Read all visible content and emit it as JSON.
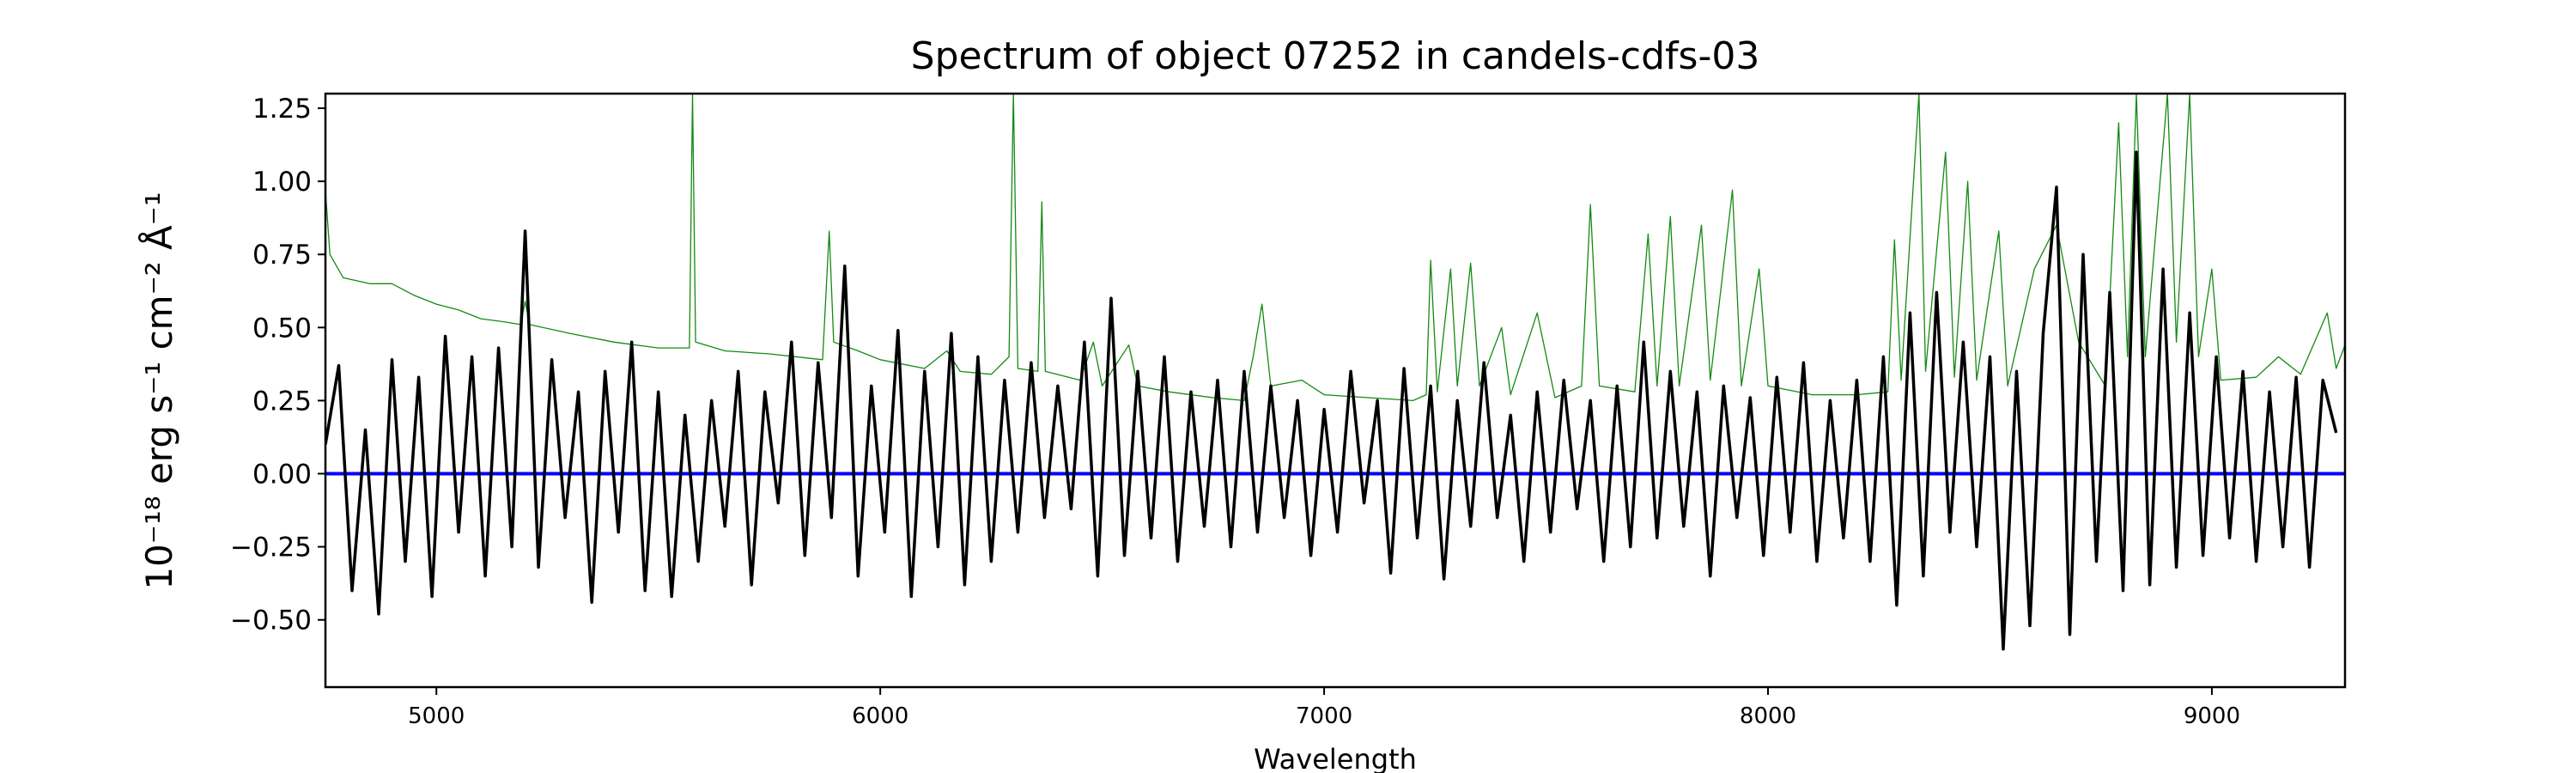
{
  "chart_data": {
    "type": "line",
    "title": "Spectrum of object 07252 in candels-cdfs-03",
    "xlabel": "Wavelength",
    "ylabel": "10⁻¹⁸ erg s⁻¹ cm⁻² Å⁻¹",
    "xlim": [
      4750,
      9300
    ],
    "ylim": [
      -0.73,
      1.3
    ],
    "xticks": [
      5000,
      6000,
      7000,
      8000,
      9000
    ],
    "xtick_labels": [
      "5000",
      "6000",
      "7000",
      "8000",
      "9000"
    ],
    "yticks": [
      -0.5,
      -0.25,
      0,
      0.25,
      0.5,
      0.75,
      1.0,
      1.25
    ],
    "ytick_labels": [
      "−0.50",
      "−0.25",
      "0.00",
      "0.25",
      "0.50",
      "0.75",
      "1.00",
      "1.25"
    ],
    "grid": false,
    "series": [
      {
        "name": "flux",
        "color": "#000000",
        "x_start": 4750,
        "x_step": 30,
        "values": [
          0.1,
          0.37,
          -0.4,
          0.15,
          -0.48,
          0.39,
          -0.3,
          0.33,
          -0.42,
          0.47,
          -0.2,
          0.4,
          -0.35,
          0.43,
          -0.25,
          0.83,
          -0.32,
          0.39,
          -0.15,
          0.28,
          -0.44,
          0.35,
          -0.2,
          0.45,
          -0.4,
          0.28,
          -0.42,
          0.2,
          -0.3,
          0.25,
          -0.18,
          0.35,
          -0.38,
          0.28,
          -0.1,
          0.45,
          -0.28,
          0.38,
          -0.15,
          0.71,
          -0.35,
          0.3,
          -0.2,
          0.49,
          -0.42,
          0.35,
          -0.25,
          0.48,
          -0.38,
          0.4,
          -0.3,
          0.32,
          -0.2,
          0.38,
          -0.15,
          0.3,
          -0.12,
          0.45,
          -0.35,
          0.6,
          -0.28,
          0.35,
          -0.22,
          0.4,
          -0.3,
          0.28,
          -0.18,
          0.32,
          -0.25,
          0.35,
          -0.2,
          0.3,
          -0.15,
          0.25,
          -0.28,
          0.22,
          -0.2,
          0.35,
          -0.1,
          0.25,
          -0.34,
          0.36,
          -0.22,
          0.3,
          -0.36,
          0.25,
          -0.18,
          0.38,
          -0.15,
          0.2,
          -0.3,
          0.28,
          -0.2,
          0.32,
          -0.12,
          0.25,
          -0.3,
          0.3,
          -0.25,
          0.45,
          -0.22,
          0.35,
          -0.18,
          0.28,
          -0.35,
          0.3,
          -0.15,
          0.26,
          -0.28,
          0.33,
          -0.2,
          0.38,
          -0.3,
          0.25,
          -0.22,
          0.32,
          -0.3,
          0.4,
          -0.45,
          0.55,
          -0.35,
          0.62,
          -0.2,
          0.45,
          -0.25,
          0.4,
          -0.6,
          0.35,
          -0.52,
          0.48,
          0.98,
          -0.55,
          0.75,
          -0.3,
          0.62,
          -0.4,
          1.1,
          -0.38,
          0.7,
          -0.32,
          0.55,
          -0.28,
          0.4,
          -0.22,
          0.35,
          -0.3,
          0.28,
          -0.25,
          0.33,
          -0.32,
          0.32,
          0.14
        ]
      },
      {
        "name": "contamination",
        "color": "#138a13",
        "points": [
          [
            4750,
            0.97
          ],
          [
            4760,
            0.75
          ],
          [
            4790,
            0.67
          ],
          [
            4850,
            0.65
          ],
          [
            4900,
            0.65
          ],
          [
            4950,
            0.61
          ],
          [
            5000,
            0.58
          ],
          [
            5050,
            0.56
          ],
          [
            5100,
            0.53
          ],
          [
            5150,
            0.52
          ],
          [
            5190,
            0.51
          ],
          [
            5200,
            0.59
          ],
          [
            5210,
            0.51
          ],
          [
            5300,
            0.48
          ],
          [
            5400,
            0.45
          ],
          [
            5500,
            0.43
          ],
          [
            5570,
            0.43
          ],
          [
            5577,
            1.3
          ],
          [
            5584,
            0.45
          ],
          [
            5650,
            0.42
          ],
          [
            5750,
            0.41
          ],
          [
            5870,
            0.39
          ],
          [
            5885,
            0.83
          ],
          [
            5895,
            0.45
          ],
          [
            5950,
            0.42
          ],
          [
            6000,
            0.39
          ],
          [
            6100,
            0.36
          ],
          [
            6150,
            0.42
          ],
          [
            6180,
            0.35
          ],
          [
            6250,
            0.34
          ],
          [
            6290,
            0.4
          ],
          [
            6300,
            1.3
          ],
          [
            6310,
            0.36
          ],
          [
            6355,
            0.35
          ],
          [
            6364,
            0.93
          ],
          [
            6372,
            0.35
          ],
          [
            6450,
            0.32
          ],
          [
            6480,
            0.45
          ],
          [
            6500,
            0.3
          ],
          [
            6560,
            0.44
          ],
          [
            6580,
            0.3
          ],
          [
            6650,
            0.28
          ],
          [
            6750,
            0.26
          ],
          [
            6820,
            0.25
          ],
          [
            6840,
            0.4
          ],
          [
            6860,
            0.58
          ],
          [
            6880,
            0.3
          ],
          [
            6950,
            0.32
          ],
          [
            7000,
            0.27
          ],
          [
            7100,
            0.26
          ],
          [
            7200,
            0.25
          ],
          [
            7230,
            0.27
          ],
          [
            7240,
            0.73
          ],
          [
            7255,
            0.28
          ],
          [
            7285,
            0.7
          ],
          [
            7300,
            0.3
          ],
          [
            7330,
            0.72
          ],
          [
            7350,
            0.3
          ],
          [
            7400,
            0.5
          ],
          [
            7420,
            0.27
          ],
          [
            7480,
            0.55
          ],
          [
            7520,
            0.26
          ],
          [
            7580,
            0.3
          ],
          [
            7600,
            0.92
          ],
          [
            7620,
            0.3
          ],
          [
            7700,
            0.28
          ],
          [
            7730,
            0.82
          ],
          [
            7750,
            0.3
          ],
          [
            7780,
            0.88
          ],
          [
            7800,
            0.3
          ],
          [
            7850,
            0.85
          ],
          [
            7870,
            0.32
          ],
          [
            7920,
            0.97
          ],
          [
            7940,
            0.3
          ],
          [
            7980,
            0.7
          ],
          [
            8000,
            0.3
          ],
          [
            8100,
            0.27
          ],
          [
            8200,
            0.27
          ],
          [
            8270,
            0.28
          ],
          [
            8285,
            0.8
          ],
          [
            8300,
            0.32
          ],
          [
            8340,
            1.3
          ],
          [
            8355,
            0.35
          ],
          [
            8400,
            1.1
          ],
          [
            8420,
            0.33
          ],
          [
            8450,
            1.0
          ],
          [
            8470,
            0.32
          ],
          [
            8520,
            0.83
          ],
          [
            8540,
            0.3
          ],
          [
            8600,
            0.7
          ],
          [
            8650,
            0.85
          ],
          [
            8700,
            0.45
          ],
          [
            8760,
            0.3
          ],
          [
            8790,
            1.2
          ],
          [
            8810,
            0.4
          ],
          [
            8830,
            1.3
          ],
          [
            8850,
            0.4
          ],
          [
            8900,
            1.3
          ],
          [
            8920,
            0.45
          ],
          [
            8950,
            1.3
          ],
          [
            8970,
            0.4
          ],
          [
            9000,
            0.7
          ],
          [
            9020,
            0.32
          ],
          [
            9100,
            0.33
          ],
          [
            9150,
            0.4
          ],
          [
            9200,
            0.34
          ],
          [
            9260,
            0.55
          ],
          [
            9280,
            0.36
          ],
          [
            9300,
            0.44
          ]
        ]
      },
      {
        "name": "zero-line",
        "color": "#0000ff",
        "points": [
          [
            4750,
            0
          ],
          [
            9300,
            0
          ]
        ]
      }
    ]
  }
}
